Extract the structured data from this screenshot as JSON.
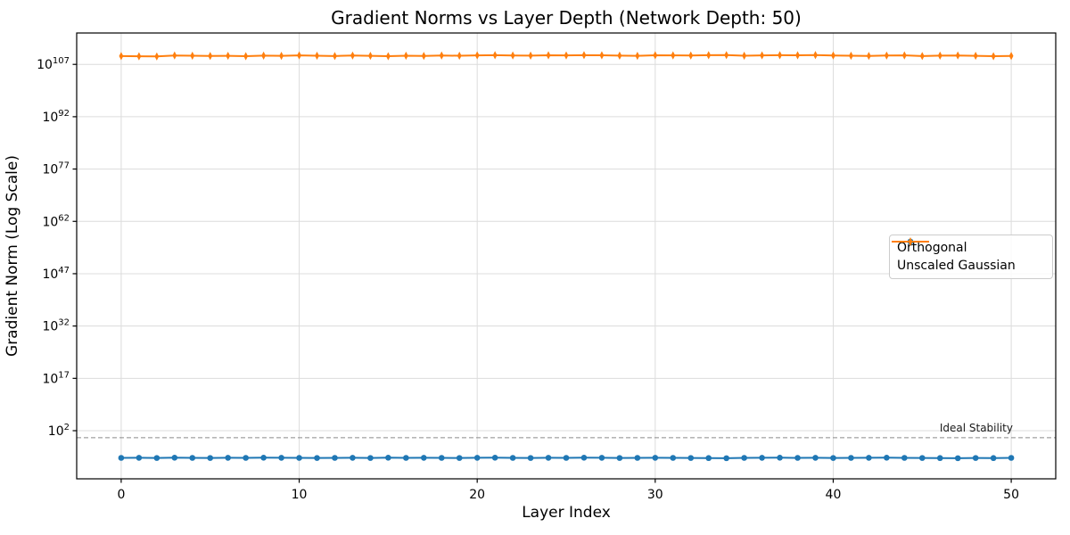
{
  "chart": {
    "title": "Gradient Norms vs Layer Depth (Network Depth: 50)",
    "xlabel": "Layer Index",
    "ylabel": "Gradient Norm (Log Scale)",
    "annotation": "Ideal Stability"
  },
  "chart_data": {
    "type": "line",
    "yscale": "log",
    "title": "Gradient Norms vs Layer Depth (Network Depth: 50)",
    "xlabel": "Layer Index",
    "ylabel": "Gradient Norm (Log Scale)",
    "x": [
      0,
      1,
      2,
      3,
      4,
      5,
      6,
      7,
      8,
      9,
      10,
      11,
      12,
      13,
      14,
      15,
      16,
      17,
      18,
      19,
      20,
      21,
      22,
      23,
      24,
      25,
      26,
      27,
      28,
      29,
      30,
      31,
      32,
      33,
      34,
      35,
      36,
      37,
      38,
      39,
      40,
      41,
      42,
      43,
      44,
      45,
      46,
      47,
      48,
      49,
      50
    ],
    "series": [
      {
        "name": "Orthogonal",
        "color": "#1f77b4",
        "marker": "circle",
        "values": [
          1.6e-06,
          1.7e-06,
          1.5e-06,
          1.8e-06,
          1.6e-06,
          1.5e-06,
          1.7e-06,
          1.6e-06,
          1.8e-06,
          1.7e-06,
          1.6e-06,
          1.5e-06,
          1.6e-06,
          1.7e-06,
          1.5e-06,
          1.8e-06,
          1.6e-06,
          1.7e-06,
          1.6e-06,
          1.5e-06,
          1.7e-06,
          1.8e-06,
          1.6e-06,
          1.5e-06,
          1.7e-06,
          1.6e-06,
          1.8e-06,
          1.7e-06,
          1.5e-06,
          1.6e-06,
          1.7e-06,
          1.6e-06,
          1.5e-06,
          1.4e-06,
          1.3e-06,
          1.6e-06,
          1.7e-06,
          1.8e-06,
          1.6e-06,
          1.7e-06,
          1.5e-06,
          1.6e-06,
          1.7e-06,
          1.8e-06,
          1.6e-06,
          1.5e-06,
          1.4e-06,
          1.3e-06,
          1.5e-06,
          1.4e-06,
          1.6e-06
        ]
      },
      {
        "name": "Unscaled Gaussian",
        "color": "#ff7f0e",
        "marker": "thin-diamond",
        "values": [
          2.4e+109,
          2.1e+109,
          1.9e+109,
          3.6e+109,
          3.1e+109,
          2.6e+109,
          2.9e+109,
          2.3e+109,
          3.3e+109,
          2.8e+109,
          3.8e+109,
          3e+109,
          2.5e+109,
          3.4e+109,
          2.9e+109,
          2.2e+109,
          3.1e+109,
          2.7e+109,
          3.5e+109,
          3e+109,
          3.9e+109,
          4.4e+109,
          3.6e+109,
          3.2e+109,
          4.1e+109,
          3.7e+109,
          4.5e+109,
          4e+109,
          3.3e+109,
          2.8e+109,
          4.2e+109,
          3.8e+109,
          3.5e+109,
          4.3e+109,
          4.6e+109,
          3.1e+109,
          3.9e+109,
          4.4e+109,
          4.1e+109,
          4.7e+109,
          3.6e+109,
          3e+109,
          2.7e+109,
          3.4e+109,
          3.8e+109,
          2.5e+109,
          3.2e+109,
          3.6e+109,
          2.9e+109,
          2.2e+109,
          2.6e+109
        ]
      }
    ],
    "xlim": [
      -2.5,
      52.5
    ],
    "ylim_exponents": [
      -11.8,
      116.0
    ],
    "xticks": [
      0,
      10,
      20,
      30,
      40,
      50
    ],
    "ytick_exponents": [
      2,
      17,
      32,
      47,
      62,
      77,
      92,
      107
    ],
    "reference_line": {
      "value": 1,
      "label": "Ideal Stability",
      "style": "dashed",
      "color": "#8a8a8a"
    },
    "grid": true,
    "grid_color": "#dcdcdc",
    "legend_position": "center right"
  }
}
